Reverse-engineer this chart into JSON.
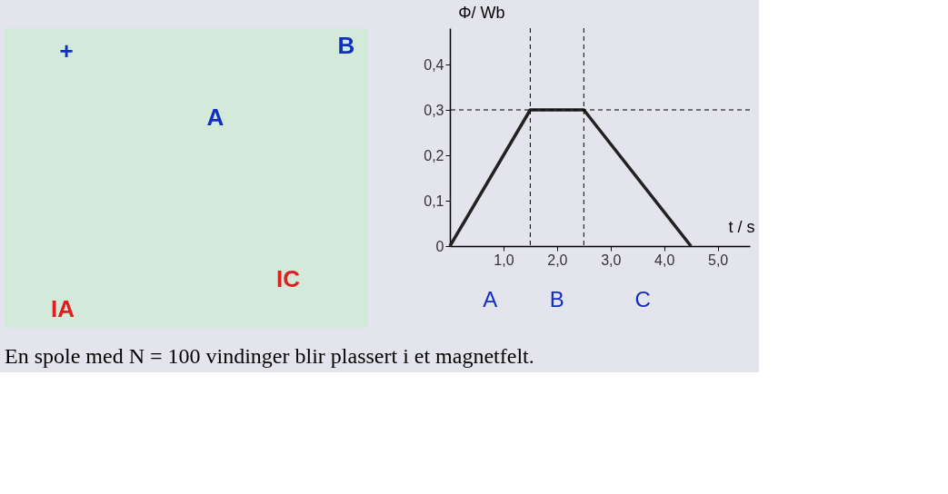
{
  "chart_data": [
    {
      "type": "other",
      "annotations": [
        "+",
        "A",
        "B",
        "IA",
        "IC"
      ]
    },
    {
      "type": "line",
      "xlabel": "t / s",
      "ylabel": "Φ/ Wb",
      "x": [
        0,
        1.5,
        2.5,
        4.5
      ],
      "series": [
        {
          "color": "#222222",
          "values": [
            0,
            0.3,
            0.3,
            0
          ]
        }
      ],
      "xlim": [
        0,
        5.6
      ],
      "ylim": [
        0,
        0.48
      ],
      "xticks": [
        {
          "value": 1,
          "label": "1,0"
        },
        {
          "value": 2,
          "label": "2,0"
        },
        {
          "value": 3,
          "label": "3,0"
        },
        {
          "value": 4,
          "label": "4,0"
        },
        {
          "value": 5,
          "label": "5,0"
        }
      ],
      "yticks": [
        0,
        {
          "value": 0.1,
          "label": "0,1"
        },
        {
          "value": 0.2,
          "label": "0,2"
        },
        {
          "value": 0.3,
          "label": "0,3"
        },
        {
          "value": 0.4,
          "label": "0,4"
        }
      ],
      "ref_lines": [
        {
          "axis": "x",
          "value": 1.5,
          "line_style": "dashed"
        },
        {
          "axis": "x",
          "value": 2.5,
          "line_style": "dashed"
        },
        {
          "axis": "y",
          "value": 0.3,
          "line_style": "dashed"
        }
      ],
      "grid": false,
      "marker": "none",
      "line_style": "solid",
      "annotations": [
        "A",
        "B",
        "C",
        "En spole med N = 100 vindinger blir plassert i et magnetfelt."
      ]
    }
  ]
}
